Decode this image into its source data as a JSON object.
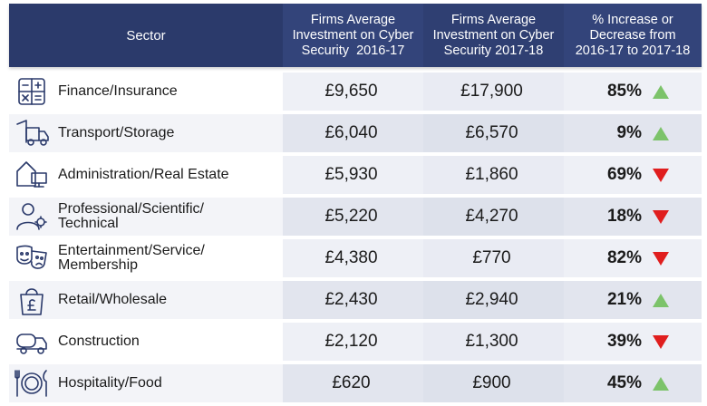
{
  "header": {
    "sector": "Sector",
    "col_2016_line1": "Firms Average",
    "col_2016_line2": "Investment on Cyber",
    "col_2016_line3": "Security  2016-17",
    "col_2017_line1": "Firms Average",
    "col_2017_line2": "Investment on Cyber",
    "col_2017_line3": "Security 2017-18",
    "pct_line1": "% Increase or",
    "pct_line2": "Decrease from",
    "pct_line3": "2016-17 to 2017-18"
  },
  "colors": {
    "header_bg": "#2b3a6b",
    "increase": "#7cc36a",
    "decrease": "#e01e1e"
  },
  "chart_data": {
    "type": "table",
    "columns": [
      "Sector",
      "Firms Average Investment on Cyber Security 2016-17",
      "Firms Average Investment on Cyber Security 2017-18",
      "% Increase or Decrease from 2016-17 to 2017-18"
    ],
    "rows": [
      {
        "sector_line1": "Finance/Insurance",
        "sector_line2": "",
        "icon": "calculator-icon",
        "v2016": "£9,650",
        "v2017": "£17,900",
        "pct": "85%",
        "direction": "up"
      },
      {
        "sector_line1": "Transport/Storage",
        "sector_line2": "",
        "icon": "truck-icon",
        "v2016": "£6,040",
        "v2017": "£6,570",
        "pct": "9%",
        "direction": "up"
      },
      {
        "sector_line1": "Administration/Real Estate",
        "sector_line2": "",
        "icon": "house-computer-icon",
        "v2016": "£5,930",
        "v2017": "£1,860",
        "pct": "69%",
        "direction": "down"
      },
      {
        "sector_line1": "Professional/Scientific/",
        "sector_line2": "Technical",
        "icon": "person-gear-icon",
        "v2016": "£5,220",
        "v2017": "£4,270",
        "pct": "18%",
        "direction": "down"
      },
      {
        "sector_line1": "Entertainment/Service/",
        "sector_line2": "Membership",
        "icon": "theatre-masks-icon",
        "v2016": "£4,380",
        "v2017": "£770",
        "pct": "82%",
        "direction": "down"
      },
      {
        "sector_line1": "Retail/Wholesale",
        "sector_line2": "",
        "icon": "shopping-bag-pound-icon",
        "v2016": "£2,430",
        "v2017": "£2,940",
        "pct": "21%",
        "direction": "up"
      },
      {
        "sector_line1": "Construction",
        "sector_line2": "",
        "icon": "cement-truck-icon",
        "v2016": "£2,120",
        "v2017": "£1,300",
        "pct": "39%",
        "direction": "down"
      },
      {
        "sector_line1": "Hospitality/Food",
        "sector_line2": "",
        "icon": "plate-cutlery-icon",
        "v2016": "£620",
        "v2017": "£900",
        "pct": "45%",
        "direction": "up"
      }
    ]
  }
}
